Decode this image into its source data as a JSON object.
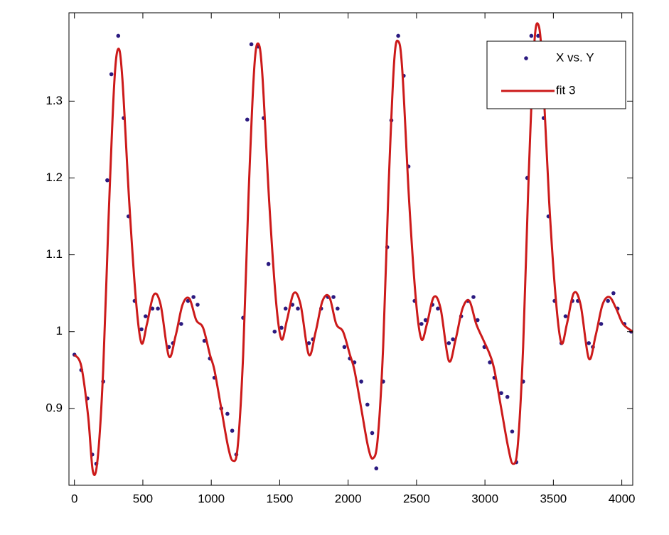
{
  "chart_data": {
    "type": "scatter_fit",
    "xlim": [
      -40,
      4080
    ],
    "ylim": [
      0.8,
      1.415
    ],
    "xticks": [
      0,
      500,
      1000,
      1500,
      2000,
      2500,
      3000,
      3500,
      4000
    ],
    "yticks": [
      0.9,
      1,
      1.1,
      1.2,
      1.3
    ],
    "legend": "top-right",
    "grid": false,
    "series": [
      {
        "name": "X vs. Y",
        "color": "#2b1a80",
        "mode": "markers",
        "x": [
          0,
          50,
          95,
          130,
          160,
          210,
          240,
          270,
          320,
          360,
          395,
          440,
          490,
          520,
          570,
          610,
          690,
          720,
          780,
          830,
          870,
          900,
          950,
          990,
          1023,
          1073,
          1118,
          1153,
          1183,
          1233,
          1263,
          1293,
          1343,
          1383,
          1418,
          1463,
          1513,
          1543,
          1593,
          1633,
          1713,
          1743,
          1803,
          1853,
          1893,
          1923,
          1973,
          2013,
          2046,
          2096,
          2141,
          2176,
          2206,
          2256,
          2286,
          2316,
          2366,
          2406,
          2441,
          2486,
          2536,
          2566,
          2616,
          2656,
          2736,
          2766,
          2826,
          2876,
          2916,
          2946,
          2996,
          3036,
          3069,
          3119,
          3164,
          3199,
          3229,
          3279,
          3309,
          3339,
          3389,
          3429,
          3464,
          3509,
          3559,
          3589,
          3639,
          3679,
          3759,
          3789,
          3849,
          3899,
          3939,
          3969,
          4019,
          4069
        ],
        "values": [
          0.97,
          0.95,
          0.913,
          0.84,
          0.828,
          0.935,
          1.197,
          1.335,
          1.385,
          1.278,
          1.15,
          1.04,
          1.003,
          1.02,
          1.03,
          1.03,
          0.98,
          0.985,
          1.01,
          1.04,
          1.045,
          1.035,
          0.988,
          0.965,
          0.94,
          0.9,
          0.893,
          0.871,
          0.84,
          1.018,
          1.276,
          1.374,
          1.371,
          1.278,
          1.088,
          1.0,
          1.005,
          1.03,
          1.035,
          1.03,
          0.985,
          0.99,
          1.03,
          1.045,
          1.045,
          1.03,
          0.98,
          0.965,
          0.96,
          0.935,
          0.905,
          0.868,
          0.822,
          0.935,
          1.11,
          1.275,
          1.385,
          1.333,
          1.215,
          1.04,
          1.01,
          1.015,
          1.035,
          1.03,
          0.985,
          0.99,
          1.02,
          1.04,
          1.045,
          1.015,
          0.98,
          0.96,
          0.94,
          0.92,
          0.915,
          0.87,
          0.83,
          0.935,
          1.2,
          1.385,
          1.385,
          1.278,
          1.15,
          1.04,
          0.985,
          1.02,
          1.04,
          1.04,
          0.985,
          0.98,
          1.01,
          1.04,
          1.05,
          1.03,
          1.01,
          1.0
        ]
      },
      {
        "name": "fit 3",
        "color": "#cc1a1a",
        "mode": "line",
        "x": [
          0,
          50,
          100,
          135,
          170,
          210,
          250,
          290,
          320,
          350,
          400,
          450,
          490,
          530,
          580,
          630,
          690,
          740,
          790,
          840,
          890,
          940,
          990,
          1023,
          1073,
          1123,
          1158,
          1193,
          1233,
          1273,
          1313,
          1343,
          1373,
          1423,
          1473,
          1513,
          1553,
          1603,
          1653,
          1713,
          1763,
          1813,
          1863,
          1913,
          1963,
          2013,
          2046,
          2096,
          2146,
          2181,
          2216,
          2256,
          2296,
          2336,
          2366,
          2396,
          2446,
          2496,
          2536,
          2576,
          2626,
          2676,
          2736,
          2786,
          2836,
          2886,
          2936,
          2986,
          3036,
          3069,
          3119,
          3169,
          3204,
          3239,
          3279,
          3319,
          3359,
          3389,
          3419,
          3469,
          3519,
          3559,
          3599,
          3649,
          3699,
          3759,
          3809,
          3859,
          3909,
          3959,
          4009,
          4080
        ],
        "values": [
          0.97,
          0.955,
          0.89,
          0.818,
          0.835,
          0.95,
          1.15,
          1.32,
          1.368,
          1.33,
          1.17,
          1.04,
          0.985,
          1.01,
          1.048,
          1.035,
          0.968,
          0.995,
          1.035,
          1.043,
          1.015,
          1.005,
          0.97,
          0.95,
          0.9,
          0.85,
          0.832,
          0.85,
          0.97,
          1.18,
          1.34,
          1.375,
          1.335,
          1.17,
          1.04,
          0.99,
          1.015,
          1.05,
          1.035,
          0.97,
          1.0,
          1.04,
          1.045,
          1.01,
          1.0,
          0.97,
          0.95,
          0.9,
          0.85,
          0.835,
          0.86,
          0.98,
          1.19,
          1.35,
          1.378,
          1.34,
          1.17,
          1.04,
          0.99,
          1.01,
          1.045,
          1.03,
          0.962,
          0.99,
          1.03,
          1.04,
          1.01,
          0.99,
          0.97,
          0.95,
          0.9,
          0.85,
          0.828,
          0.85,
          0.98,
          1.2,
          1.37,
          1.4,
          1.35,
          1.17,
          1.04,
          0.985,
          1.01,
          1.05,
          1.035,
          0.965,
          0.995,
          1.035,
          1.045,
          1.03,
          1.01,
          1.0
        ]
      }
    ]
  }
}
